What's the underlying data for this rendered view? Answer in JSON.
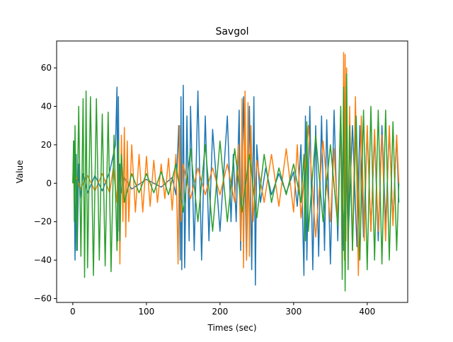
{
  "chart_data": {
    "type": "line",
    "title": "Savgol",
    "xlabel": "Times (sec)",
    "ylabel": "Value",
    "xlim": [
      -22,
      455
    ],
    "ylim": [
      -62,
      74
    ],
    "xticks": [
      0,
      100,
      200,
      300,
      400
    ],
    "yticks": [
      -60,
      -40,
      -20,
      0,
      20,
      40,
      60
    ],
    "grid": false,
    "legend": "none",
    "series": [
      {
        "name": "series-blue",
        "color": "#1f77b4",
        "x": [
          0,
          1.5,
          3,
          4.5,
          6,
          8,
          10,
          14,
          20,
          30,
          40,
          50,
          58,
          60,
          61,
          62,
          63,
          64,
          66,
          70,
          80,
          100,
          120,
          135,
          140,
          144,
          146,
          147,
          148,
          150,
          152,
          155,
          158,
          160,
          165,
          170,
          175,
          180,
          185,
          190,
          200,
          210,
          215,
          218,
          222,
          226,
          228,
          232,
          236,
          240,
          243,
          246,
          248,
          250,
          255,
          262,
          270,
          280,
          290,
          300,
          305,
          310,
          314,
          316,
          318,
          322,
          326,
          330,
          334,
          338,
          342,
          345,
          350,
          355,
          360,
          364,
          368,
          370,
          374,
          380,
          386,
          390,
          395,
          400,
          405,
          410,
          415,
          420,
          425,
          430,
          435,
          440,
          443
        ],
        "y": [
          0,
          22,
          -40,
          15,
          -35,
          10,
          -8,
          5,
          -5,
          4,
          -4,
          6,
          20,
          50,
          -30,
          45,
          -25,
          10,
          -5,
          3,
          -3,
          2,
          -2,
          3,
          -6,
          30,
          -40,
          45,
          -45,
          51,
          -44,
          35,
          -30,
          40,
          -35,
          48,
          -40,
          35,
          -30,
          28,
          -25,
          35,
          -20,
          15,
          -20,
          38,
          -35,
          45,
          -40,
          40,
          -45,
          45,
          -53,
          20,
          -10,
          8,
          -6,
          5,
          -5,
          6,
          -12,
          20,
          -48,
          35,
          -40,
          40,
          -45,
          30,
          -38,
          35,
          -35,
          33,
          -42,
          38,
          -30,
          38,
          -35,
          40,
          -30,
          30,
          -33,
          30,
          -28,
          28,
          -25,
          25,
          -30,
          30,
          -22,
          28,
          -20,
          25,
          -10
        ]
      },
      {
        "name": "series-orange",
        "color": "#ff7f0e",
        "x": [
          0,
          5,
          10,
          20,
          30,
          40,
          50,
          55,
          60,
          62,
          64,
          66,
          68,
          70,
          72,
          74,
          76,
          80,
          85,
          90,
          95,
          100,
          105,
          110,
          115,
          120,
          125,
          130,
          135,
          140,
          143,
          145,
          147,
          150,
          160,
          170,
          180,
          190,
          200,
          210,
          220,
          225,
          228,
          230,
          232,
          234,
          236,
          238,
          240,
          242,
          245,
          250,
          260,
          270,
          280,
          290,
          300,
          305,
          310,
          320,
          330,
          340,
          350,
          355,
          360,
          364,
          366,
          368,
          369,
          370,
          371,
          372,
          374,
          376,
          380,
          384,
          388,
          392,
          396,
          400,
          405,
          410,
          415,
          420,
          425,
          430,
          435,
          440,
          443
        ],
        "y": [
          0,
          3,
          -3,
          4,
          -4,
          5,
          -5,
          8,
          -10,
          22,
          -42,
          25,
          -20,
          29,
          -28,
          22,
          -20,
          20,
          -15,
          15,
          -15,
          14,
          -12,
          12,
          -10,
          10,
          -8,
          13,
          -14,
          15,
          -42,
          30,
          -20,
          10,
          -8,
          8,
          -6,
          8,
          -6,
          10,
          -10,
          20,
          -30,
          44,
          -44,
          48,
          -40,
          42,
          -38,
          30,
          -20,
          12,
          -10,
          15,
          -12,
          18,
          -15,
          20,
          -18,
          30,
          -28,
          22,
          -20,
          18,
          -20,
          35,
          -43,
          68,
          -40,
          67,
          -30,
          60,
          -30,
          40,
          -35,
          45,
          -48,
          35,
          -30,
          30,
          -25,
          28,
          -25,
          25,
          -30,
          30,
          -22,
          25,
          0
        ]
      },
      {
        "name": "series-green",
        "color": "#2ca02c",
        "x": [
          0,
          1,
          2,
          3,
          5,
          8,
          11,
          14,
          16,
          18,
          20,
          24,
          28,
          32,
          36,
          40,
          44,
          48,
          52,
          56,
          60,
          62,
          64,
          66,
          70,
          80,
          90,
          100,
          110,
          120,
          130,
          140,
          150,
          160,
          170,
          180,
          190,
          200,
          210,
          220,
          230,
          240,
          250,
          260,
          270,
          280,
          290,
          300,
          310,
          314,
          316,
          318,
          320,
          330,
          340,
          350,
          360,
          364,
          366,
          368,
          370,
          372,
          374,
          376,
          380,
          385,
          390,
          395,
          400,
          405,
          410,
          415,
          420,
          425,
          430,
          435,
          440,
          443
        ],
        "y": [
          0,
          22,
          -20,
          30,
          -35,
          40,
          -38,
          44,
          -49,
          48,
          -44,
          45,
          -48,
          44,
          -40,
          36,
          -43,
          37,
          -46,
          25,
          -35,
          22,
          -30,
          15,
          -10,
          5,
          -5,
          5,
          -5,
          6,
          -6,
          10,
          -15,
          18,
          -20,
          20,
          -25,
          22,
          -20,
          18,
          -15,
          15,
          -18,
          15,
          -10,
          8,
          -6,
          10,
          -10,
          15,
          -30,
          32,
          -25,
          25,
          -20,
          20,
          -22,
          40,
          -50,
          50,
          -56,
          57,
          -45,
          30,
          -35,
          35,
          -40,
          38,
          -45,
          40,
          -40,
          38,
          -42,
          38,
          -40,
          32,
          -35,
          0
        ]
      }
    ]
  }
}
